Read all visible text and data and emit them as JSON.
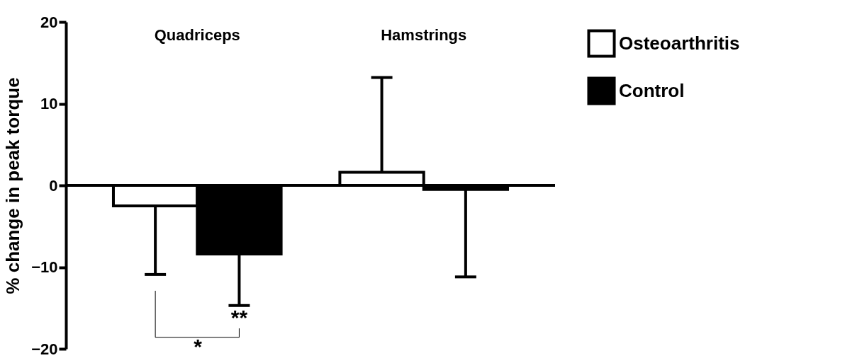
{
  "chart_data": {
    "type": "bar",
    "ylabel": "% change in peak torque",
    "categories": [
      "Quadriceps",
      "Hamstrings"
    ],
    "series": [
      {
        "name": "Osteoarthritis",
        "color": "#ffffff",
        "values": [
          -2.5,
          1.6
        ],
        "errors": [
          [
            -10.9,
            -2.5
          ],
          [
            1.6,
            13.2
          ]
        ]
      },
      {
        "name": "Control",
        "color": "#000000",
        "values": [
          -8.4,
          -0.5
        ],
        "errors": [
          [
            -14.7,
            -8.4
          ],
          [
            -11.2,
            -0.5
          ]
        ]
      }
    ],
    "ylim": [
      -20,
      20
    ],
    "yticks": [
      -20,
      -10,
      0,
      10,
      20
    ],
    "grid": false,
    "legend": "top right",
    "ref_lines": [
      {
        "axis": "y",
        "value": 0,
        "color": "#000000"
      }
    ],
    "annotations": [
      "**",
      "*"
    ]
  }
}
